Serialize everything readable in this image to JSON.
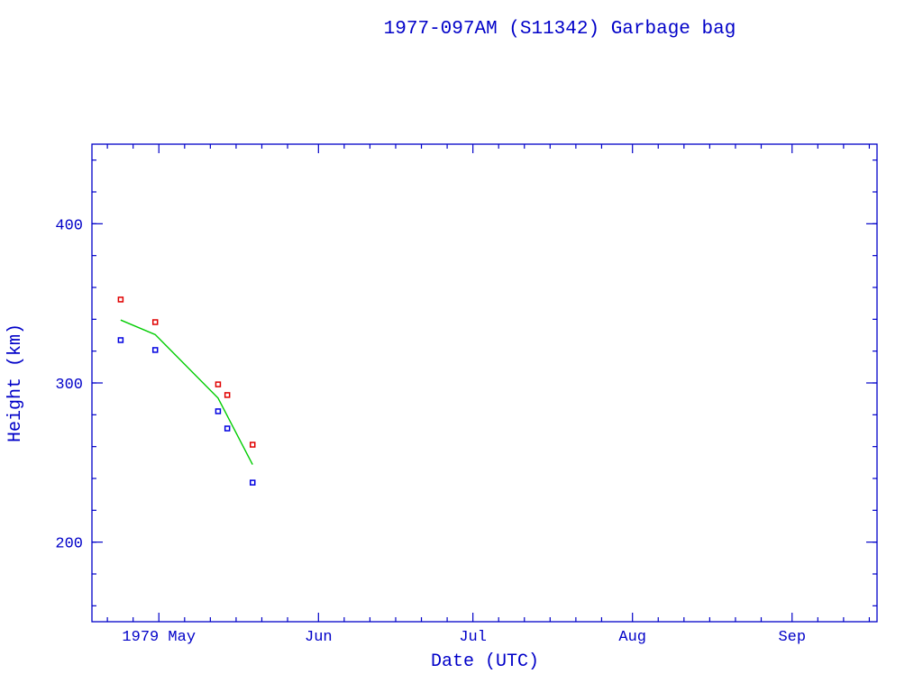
{
  "chart_data": {
    "type": "scatter",
    "title": "1977-097AM (S11342) Garbage bag",
    "xlabel": "Date (UTC)",
    "ylabel": "Height (km)",
    "xlim": [
      "1979-04-18T00:00",
      "1979-09-17T12:00"
    ],
    "ylim": [
      150,
      450
    ],
    "x_major_ticks": [
      {
        "date": "1979-05-01",
        "label": "1979 May"
      },
      {
        "date": "1979-06-01",
        "label": "Jun"
      },
      {
        "date": "1979-07-01",
        "label": "Jul"
      },
      {
        "date": "1979-08-01",
        "label": "Aug"
      },
      {
        "date": "1979-09-01",
        "label": "Sep"
      }
    ],
    "y_major_ticks": [
      200,
      300,
      400
    ],
    "grid": false,
    "colors": {
      "axis": "#0000c8",
      "apogee": "#e00000",
      "perigee": "#0000e0",
      "mean": "#00cc00"
    },
    "series": [
      {
        "kind": "scatter",
        "color": "#e00000",
        "x": [
          "1979-04-23T14:00",
          "1979-04-30T07:00",
          "1979-05-12T12:00",
          "1979-05-14T07:00",
          "1979-05-19T05:00"
        ],
        "y": [
          352.4,
          338.2,
          299.1,
          292.4,
          261.2
        ]
      },
      {
        "kind": "scatter",
        "color": "#0000e0",
        "x": [
          "1979-04-23T14:00",
          "1979-04-30T07:00",
          "1979-05-12T12:00",
          "1979-05-14T07:00",
          "1979-05-19T05:00"
        ],
        "y": [
          326.9,
          320.7,
          282.2,
          271.4,
          237.4
        ]
      },
      {
        "kind": "line",
        "color": "#00cc00",
        "x": [
          "1979-04-23T14:00",
          "1979-04-30T07:00",
          "1979-05-12T12:00",
          "1979-05-19T05:00"
        ],
        "y": [
          339.5,
          330.4,
          290.5,
          248.7
        ]
      }
    ]
  }
}
